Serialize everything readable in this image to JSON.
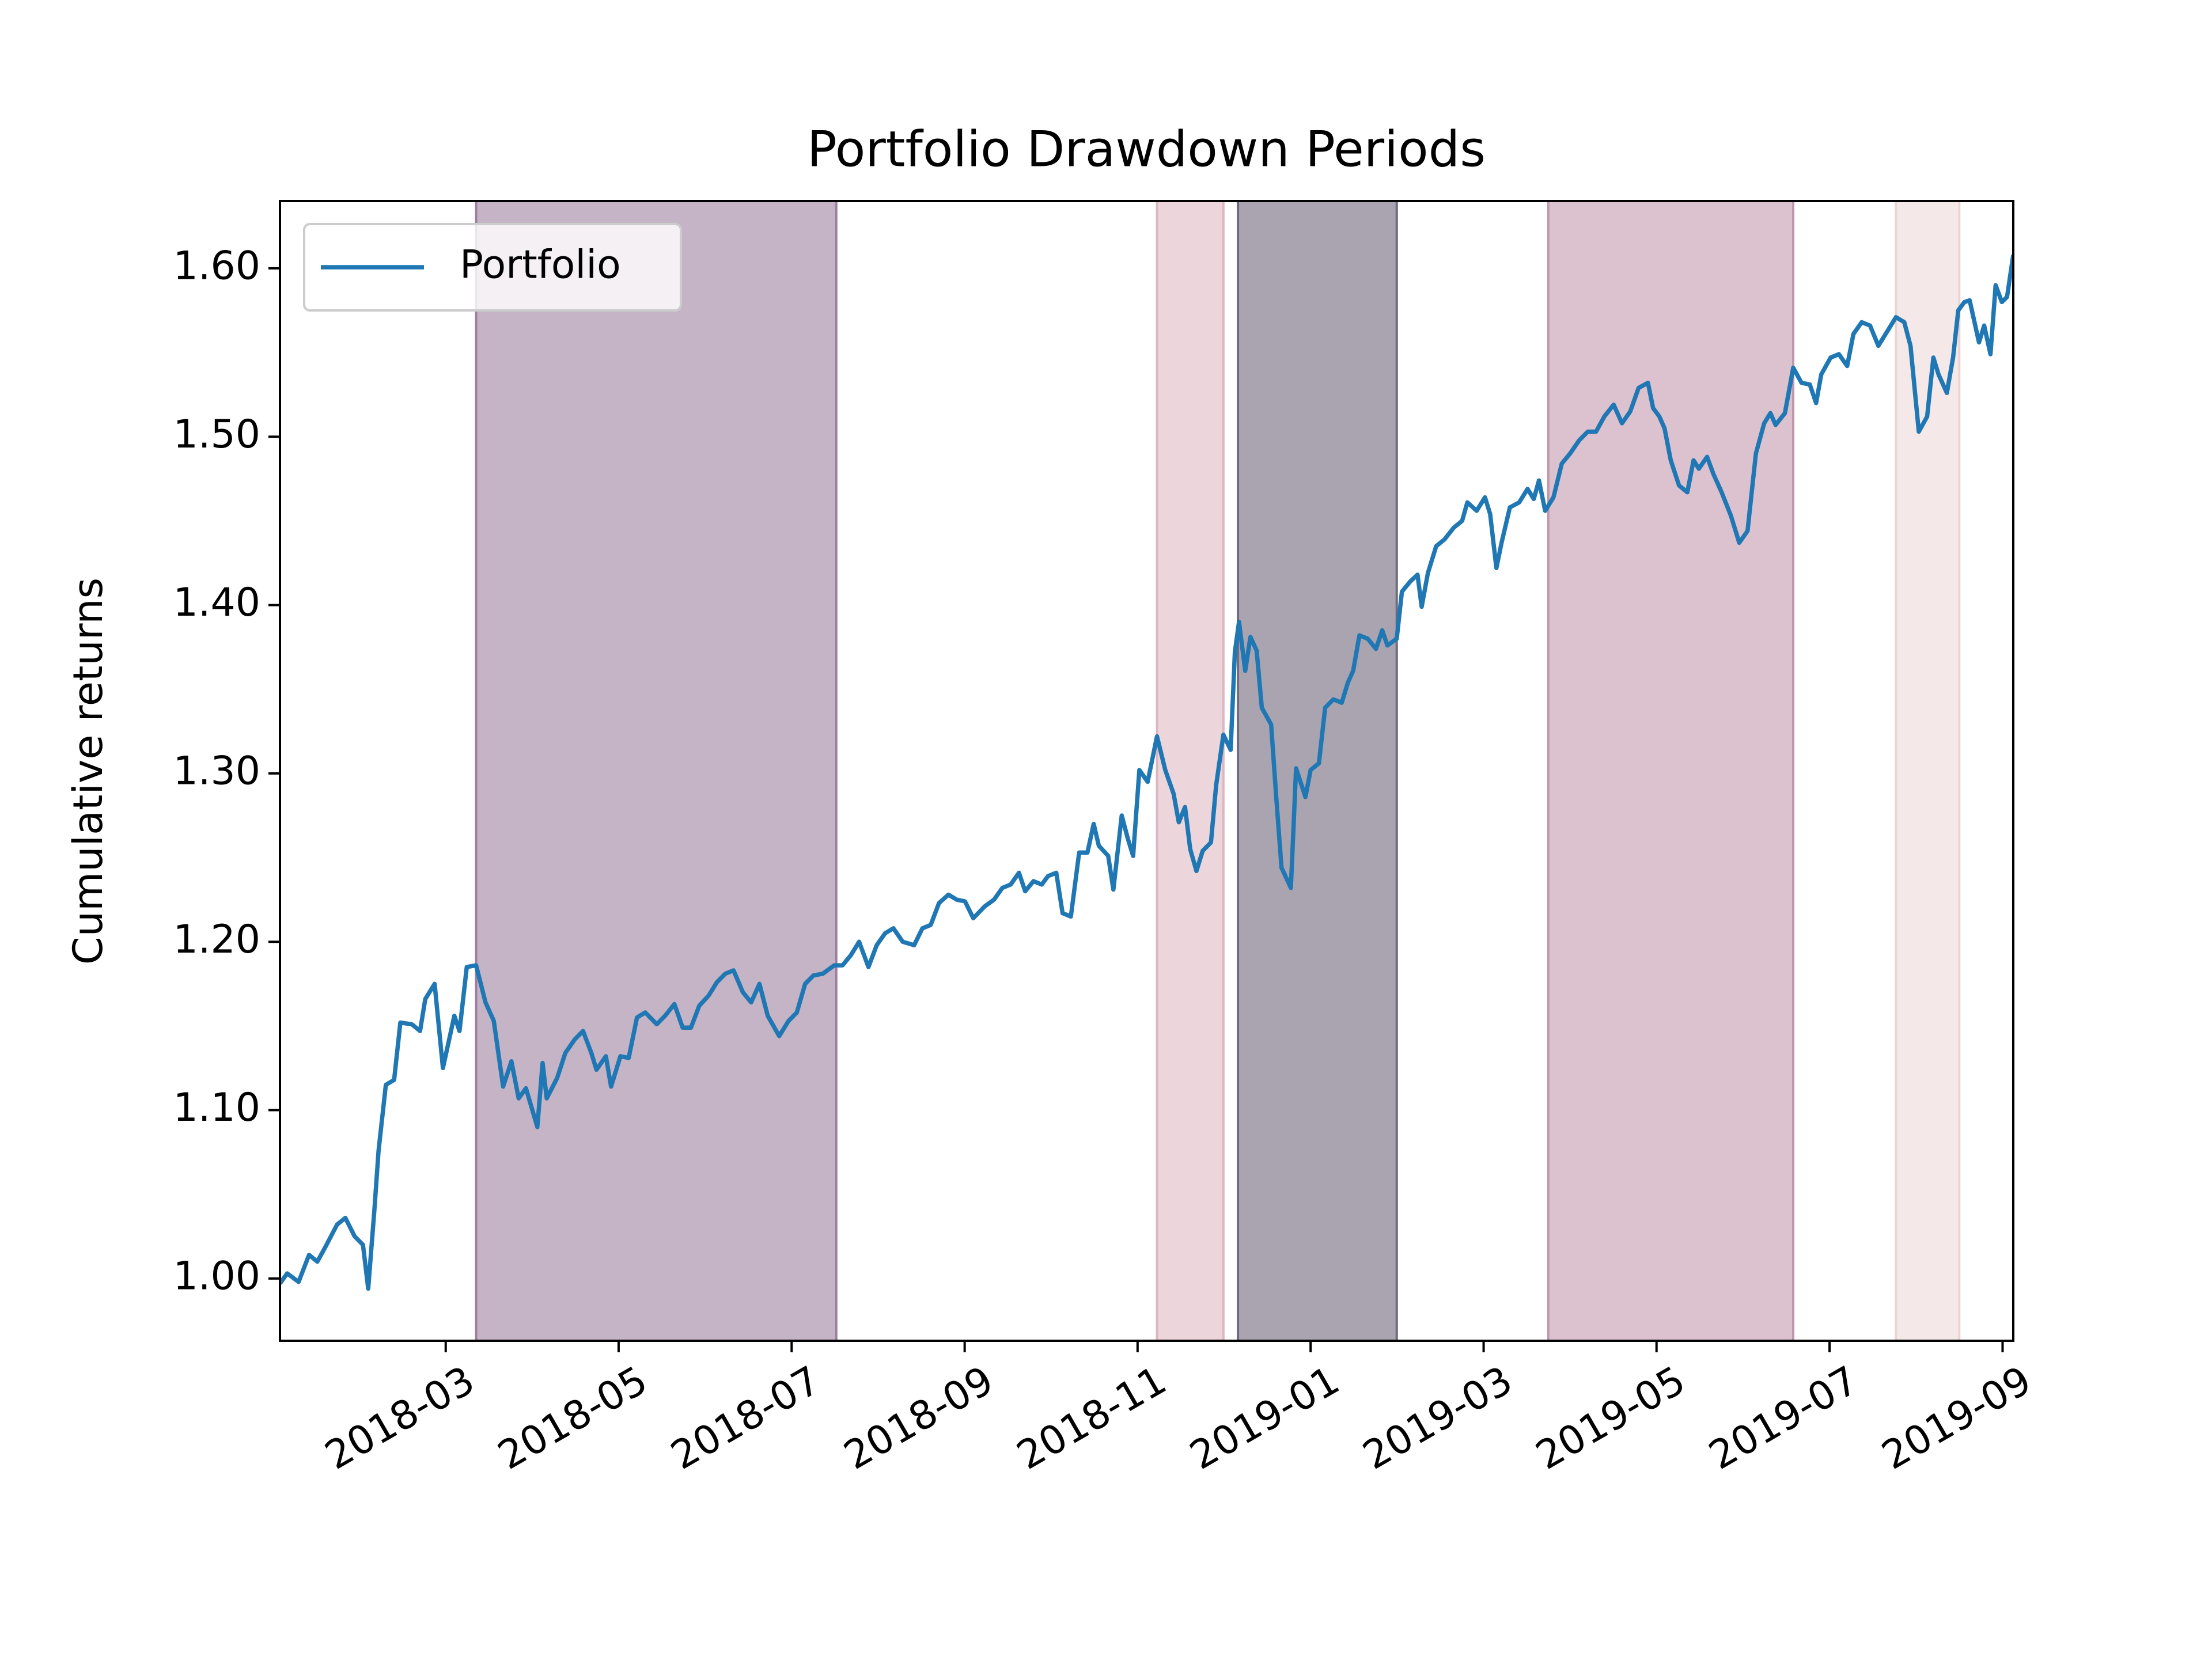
{
  "chart_data": {
    "type": "line",
    "title": "Portfolio Drawdown Periods",
    "ylabel": "Cumulative returns",
    "xlim": [
      2018.007,
      2019.677
    ],
    "ylim": [
      0.963,
      1.64
    ],
    "xticks": [
      {
        "value": 2018.1667,
        "label": "2018-03"
      },
      {
        "value": 2018.3333,
        "label": "2018-05"
      },
      {
        "value": 2018.5,
        "label": "2018-07"
      },
      {
        "value": 2018.6667,
        "label": "2018-09"
      },
      {
        "value": 2018.8333,
        "label": "2018-11"
      },
      {
        "value": 2019.0,
        "label": "2019-01"
      },
      {
        "value": 2019.1667,
        "label": "2019-03"
      },
      {
        "value": 2019.3333,
        "label": "2019-05"
      },
      {
        "value": 2019.5,
        "label": "2019-07"
      },
      {
        "value": 2019.6667,
        "label": "2019-09"
      }
    ],
    "yticks": [
      {
        "value": 1.0,
        "label": "1.00"
      },
      {
        "value": 1.1,
        "label": "1.10"
      },
      {
        "value": 1.2,
        "label": "1.20"
      },
      {
        "value": 1.3,
        "label": "1.30"
      },
      {
        "value": 1.4,
        "label": "1.40"
      },
      {
        "value": 1.5,
        "label": "1.50"
      },
      {
        "value": 1.6,
        "label": "1.60"
      }
    ],
    "grid": false,
    "legend": "upper left",
    "spans": [
      {
        "start": 2018.196,
        "end": 2018.543,
        "color": "#c5b3c6",
        "edge": "#9c7f9e"
      },
      {
        "start": 2018.852,
        "end": 2018.916,
        "color": "#ecd5db",
        "edge": "#dcb6c1"
      },
      {
        "start": 2018.93,
        "end": 2019.083,
        "color": "#a9a4b0",
        "edge": "#6f6a7c"
      },
      {
        "start": 2019.229,
        "end": 2019.465,
        "color": "#dcc1cf",
        "edge": "#bf98ae"
      },
      {
        "start": 2019.564,
        "end": 2019.625,
        "color": "#f5e8e8",
        "edge": "#ecd3d3"
      }
    ],
    "series": [
      {
        "name": "Portfolio",
        "color": "#1f77b4",
        "x": [
          2018.007,
          2018.014,
          2018.025,
          2018.035,
          2018.043,
          2018.051,
          2018.062,
          2018.07,
          2018.079,
          2018.087,
          2018.092,
          2018.098,
          2018.102,
          2018.109,
          2018.117,
          2018.123,
          2018.134,
          2018.142,
          2018.147,
          2018.156,
          2018.164,
          2018.175,
          2018.18,
          2018.187,
          2018.196,
          2018.205,
          2018.213,
          2018.222,
          2018.23,
          2018.237,
          2018.244,
          2018.255,
          2018.26,
          2018.264,
          2018.274,
          2018.282,
          2018.291,
          2018.299,
          2018.307,
          2018.312,
          2018.321,
          2018.326,
          2018.335,
          2018.343,
          2018.351,
          2018.359,
          2018.37,
          2018.378,
          2018.387,
          2018.395,
          2018.403,
          2018.411,
          2018.42,
          2018.428,
          2018.436,
          2018.444,
          2018.453,
          2018.461,
          2018.469,
          2018.477,
          2018.488,
          2018.497,
          2018.505,
          2018.513,
          2018.521,
          2018.53,
          2018.541,
          2018.549,
          2018.557,
          2018.565,
          2018.574,
          2018.582,
          2018.59,
          2018.598,
          2018.607,
          2018.618,
          2018.626,
          2018.634,
          2018.642,
          2018.651,
          2018.659,
          2018.667,
          2018.675,
          2018.686,
          2018.695,
          2018.703,
          2018.711,
          2018.719,
          2018.725,
          2018.733,
          2018.741,
          2018.747,
          2018.755,
          2018.761,
          2018.769,
          2018.777,
          2018.785,
          2018.791,
          2018.796,
          2018.805,
          2018.81,
          2018.818,
          2018.824,
          2018.829,
          2018.835,
          2018.843,
          2018.852,
          2018.86,
          2018.868,
          2018.873,
          2018.879,
          2018.884,
          2018.89,
          2018.896,
          2018.904,
          2018.909,
          2018.916,
          2018.923,
          2018.927,
          2018.931,
          2018.937,
          2018.942,
          2018.948,
          2018.953,
          2018.962,
          2018.967,
          2018.972,
          2018.981,
          2018.986,
          2018.995,
          2019.0,
          2019.008,
          2019.014,
          2019.022,
          2019.03,
          2019.036,
          2019.041,
          2019.047,
          2019.055,
          2019.063,
          2019.069,
          2019.074,
          2019.083,
          2019.088,
          2019.096,
          2019.103,
          2019.107,
          2019.113,
          2019.121,
          2019.129,
          2019.138,
          2019.146,
          2019.151,
          2019.16,
          2019.168,
          2019.173,
          2019.179,
          2019.184,
          2019.192,
          2019.201,
          2019.209,
          2019.215,
          2019.22,
          2019.226,
          2019.234,
          2019.242,
          2019.25,
          2019.259,
          2019.267,
          2019.275,
          2019.283,
          2019.292,
          2019.3,
          2019.308,
          2019.316,
          2019.325,
          2019.33,
          2019.336,
          2019.341,
          2019.347,
          2019.355,
          2019.363,
          2019.369,
          2019.374,
          2019.382,
          2019.388,
          2019.396,
          2019.405,
          2019.413,
          2019.421,
          2019.429,
          2019.437,
          2019.443,
          2019.448,
          2019.457,
          2019.465,
          2019.473,
          2019.481,
          2019.487,
          2019.492,
          2019.501,
          2019.509,
          2019.517,
          2019.523,
          2019.531,
          2019.539,
          2019.547,
          2019.556,
          2019.564,
          2019.572,
          2019.578,
          2019.586,
          2019.594,
          2019.6,
          2019.605,
          2019.613,
          2019.619,
          2019.624,
          2019.63,
          2019.635,
          2019.644,
          2019.649,
          2019.655,
          2019.66,
          2019.666,
          2019.671,
          2019.677
        ],
        "values": [
          0.997,
          1.003,
          0.998,
          1.014,
          1.01,
          1.019,
          1.032,
          1.036,
          1.025,
          1.02,
          0.994,
          1.041,
          1.076,
          1.115,
          1.118,
          1.152,
          1.151,
          1.147,
          1.166,
          1.175,
          1.125,
          1.156,
          1.147,
          1.185,
          1.186,
          1.164,
          1.153,
          1.114,
          1.129,
          1.107,
          1.113,
          1.09,
          1.128,
          1.107,
          1.119,
          1.134,
          1.142,
          1.147,
          1.134,
          1.124,
          1.132,
          1.114,
          1.132,
          1.131,
          1.155,
          1.158,
          1.151,
          1.156,
          1.163,
          1.149,
          1.149,
          1.162,
          1.168,
          1.176,
          1.181,
          1.183,
          1.17,
          1.164,
          1.175,
          1.156,
          1.144,
          1.153,
          1.158,
          1.175,
          1.18,
          1.181,
          1.186,
          1.186,
          1.192,
          1.2,
          1.185,
          1.198,
          1.205,
          1.208,
          1.2,
          1.198,
          1.208,
          1.21,
          1.223,
          1.228,
          1.225,
          1.224,
          1.214,
          1.221,
          1.225,
          1.232,
          1.234,
          1.241,
          1.23,
          1.236,
          1.234,
          1.239,
          1.241,
          1.217,
          1.215,
          1.253,
          1.253,
          1.27,
          1.257,
          1.251,
          1.231,
          1.275,
          1.261,
          1.251,
          1.302,
          1.295,
          1.322,
          1.302,
          1.288,
          1.271,
          1.28,
          1.255,
          1.242,
          1.254,
          1.259,
          1.293,
          1.323,
          1.314,
          1.372,
          1.39,
          1.361,
          1.381,
          1.373,
          1.339,
          1.329,
          1.285,
          1.244,
          1.232,
          1.303,
          1.286,
          1.302,
          1.306,
          1.339,
          1.344,
          1.342,
          1.354,
          1.361,
          1.382,
          1.38,
          1.374,
          1.385,
          1.376,
          1.38,
          1.408,
          1.414,
          1.418,
          1.399,
          1.419,
          1.435,
          1.439,
          1.446,
          1.45,
          1.461,
          1.456,
          1.464,
          1.454,
          1.422,
          1.437,
          1.458,
          1.461,
          1.469,
          1.463,
          1.474,
          1.456,
          1.464,
          1.484,
          1.49,
          1.498,
          1.503,
          1.503,
          1.512,
          1.519,
          1.508,
          1.515,
          1.529,
          1.532,
          1.517,
          1.512,
          1.505,
          1.486,
          1.471,
          1.467,
          1.486,
          1.481,
          1.488,
          1.478,
          1.467,
          1.453,
          1.437,
          1.444,
          1.49,
          1.508,
          1.514,
          1.507,
          1.514,
          1.541,
          1.532,
          1.531,
          1.52,
          1.537,
          1.547,
          1.549,
          1.542,
          1.561,
          1.568,
          1.566,
          1.554,
          1.563,
          1.571,
          1.568,
          1.554,
          1.503,
          1.512,
          1.547,
          1.537,
          1.526,
          1.547,
          1.575,
          1.58,
          1.581,
          1.556,
          1.566,
          1.549,
          1.59,
          1.58,
          1.583,
          1.608
        ]
      }
    ]
  }
}
